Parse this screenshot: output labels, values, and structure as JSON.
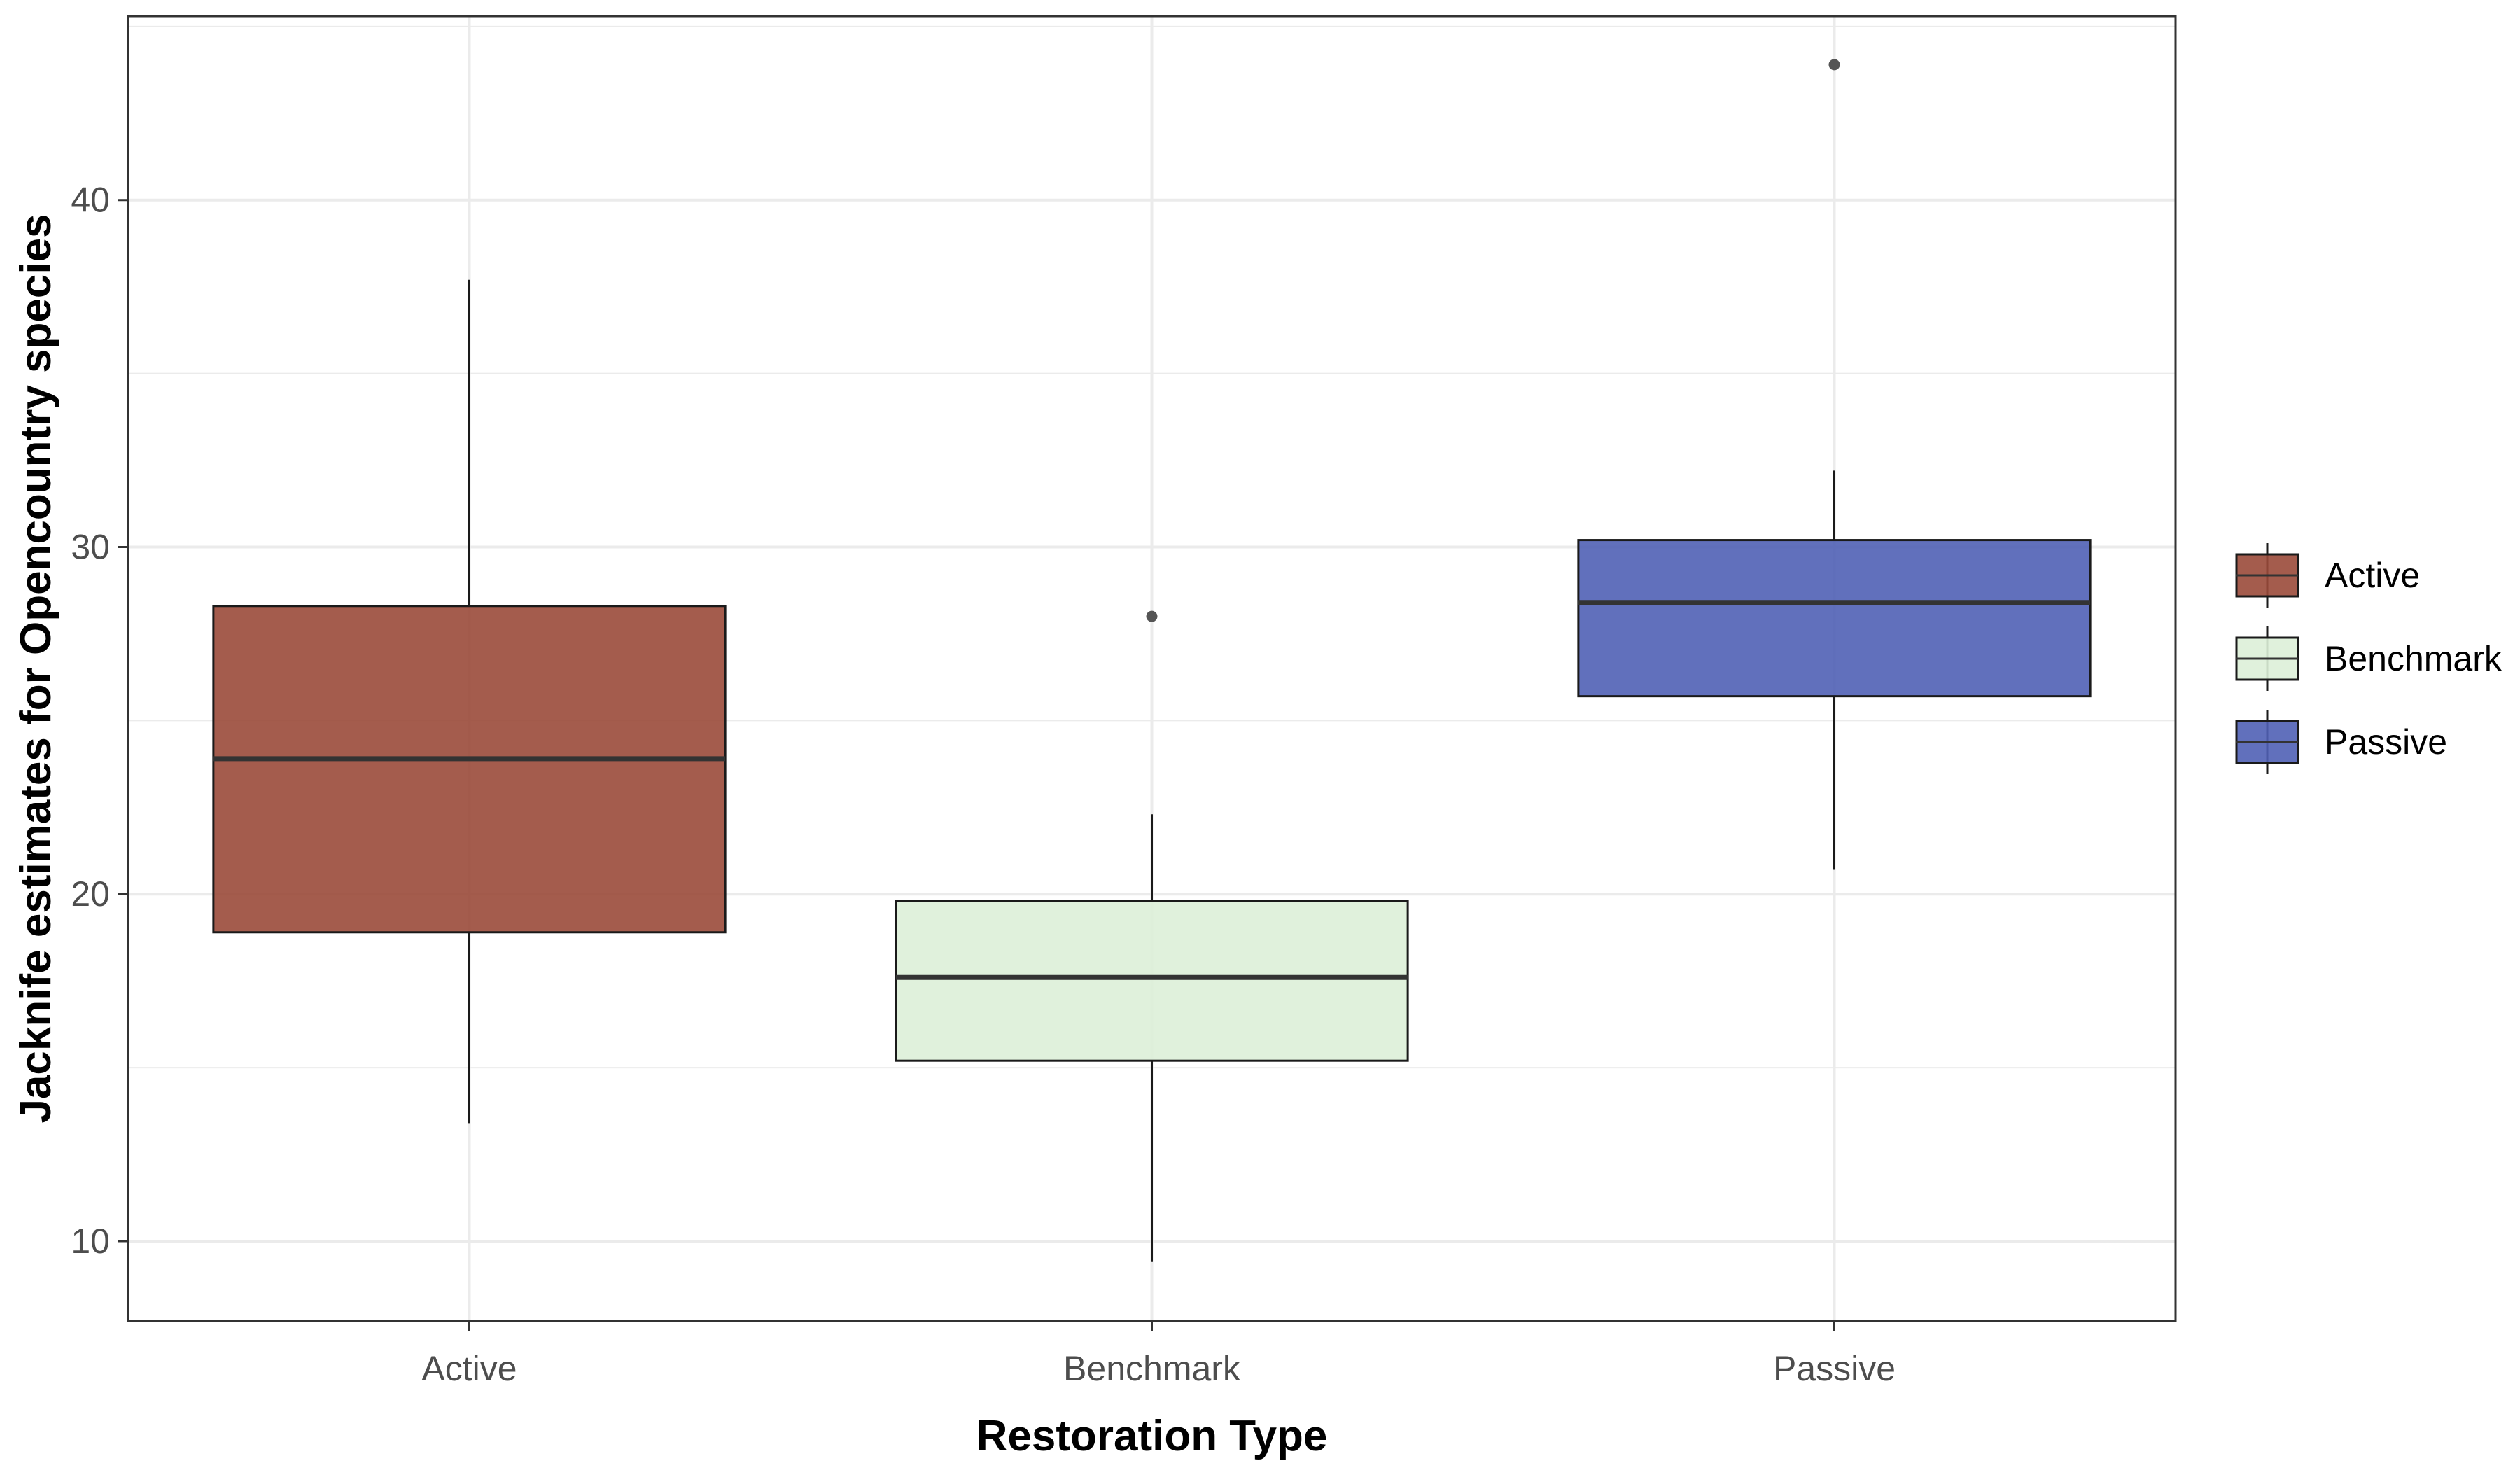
{
  "chart_data": {
    "type": "box",
    "title": "",
    "xlabel": "Restoration Type",
    "ylabel": "Jacknife estimates for Opencountry species",
    "ylim": [
      7.7,
      45.3
    ],
    "yticks": [
      10,
      20,
      30,
      40
    ],
    "categories": [
      "Active",
      "Benchmark",
      "Passive"
    ],
    "grid": true,
    "legend": {
      "position": "right",
      "entries": [
        "Active",
        "Benchmark",
        "Passive"
      ]
    },
    "series": [
      {
        "name": "Active",
        "color": "#9A4A3A",
        "min": 13.4,
        "q1": 18.9,
        "median": 23.9,
        "q3": 28.3,
        "max": 37.7,
        "outliers": []
      },
      {
        "name": "Benchmark",
        "color": "#DDF0D8",
        "min": 9.4,
        "q1": 15.2,
        "median": 17.6,
        "q3": 19.8,
        "max": 22.3,
        "outliers": [
          28.0
        ]
      },
      {
        "name": "Passive",
        "color": "#5061B5",
        "min": 20.7,
        "q1": 25.7,
        "median": 28.4,
        "q3": 30.2,
        "max": 32.2,
        "outliers": [
          43.9
        ]
      }
    ]
  }
}
